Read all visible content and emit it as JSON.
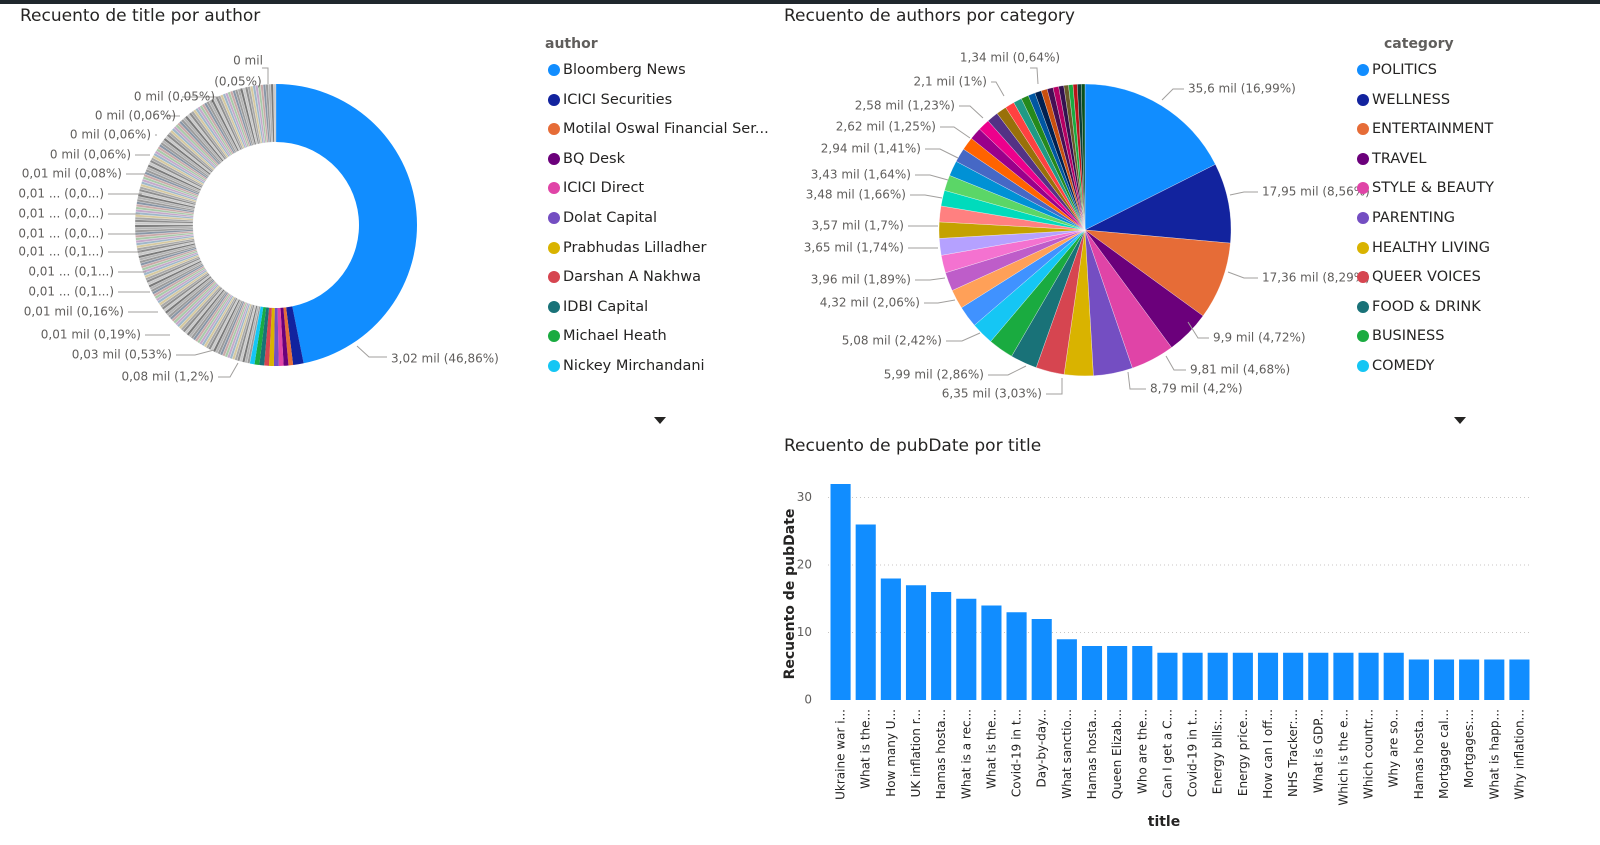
{
  "chart_data": [
    {
      "type": "pie",
      "variant": "donut",
      "title": "Recuento de title por author",
      "legend_title": "author",
      "legend_position": "right",
      "legend_items": [
        "Bloomberg News",
        "ICICI Securities",
        "Motilal Oswal Financial Ser...",
        "BQ Desk",
        "ICICI Direct",
        "Dolat Capital",
        "Prabhudas Lilladher",
        "Darshan A Nakhwa",
        "IDBI Capital",
        "Michael Heath",
        "Nickey Mirchandani"
      ],
      "legend_colors": [
        "#118DFF",
        "#12239E",
        "#E66C37",
        "#6B007B",
        "#E044A7",
        "#744EC2",
        "#D9B300",
        "#D64550",
        "#197278",
        "#1AAB40",
        "#15C6F4"
      ],
      "slices": [
        {
          "label": "Bloomberg News",
          "value_label": "3,02 mil (46,86%)",
          "percent": 46.86
        },
        {
          "label": "ICICI Securities",
          "value_label": "0,08 mil (1,2%)",
          "percent": 1.2
        },
        {
          "label": "Motilal Oswal Financial Ser...",
          "value_label": "0,03 mil (0,53%)",
          "percent": 0.53
        }
      ],
      "data_labels": [
        "3,02 mil (46,86%)",
        "0,08 mil (1,2%)",
        "0,03 mil (0,53%)",
        "0,01 mil (0,19%)",
        "0,01 mil (0,16%)",
        "0,01 ... (0,1...)",
        "0,01 ... (0,1...)",
        "0,01 ... (0,1...)",
        "0,01 ... (0,0...)",
        "0,01 ... (0,0...)",
        "0,01 ... (0,0...)",
        "0,01 mil (0,08%)",
        "0 mil (0,06%)",
        "0 mil (0,06%)",
        "0 mil (0,06%)",
        "0 mil (0,05%)",
        "(0,05%)",
        "0 mil"
      ],
      "long_tail_percent": 51.41,
      "long_tail_slice_count": 160
    },
    {
      "type": "pie",
      "title": "Recuento de authors por category",
      "legend_title": "category",
      "legend_position": "right",
      "legend_items": [
        "POLITICS",
        "WELLNESS",
        "ENTERTAINMENT",
        "TRAVEL",
        "STYLE & BEAUTY",
        "PARENTING",
        "HEALTHY LIVING",
        "QUEER VOICES",
        "FOOD & DRINK",
        "BUSINESS",
        "COMEDY"
      ],
      "slices": [
        {
          "label": "35,6 mil (16,99%)",
          "percent": 16.99,
          "color": "#118DFF"
        },
        {
          "label": "17,95 mil (8,56%)",
          "percent": 8.56,
          "color": "#12239E"
        },
        {
          "label": "17,36 mil (8,29%)",
          "percent": 8.29,
          "color": "#E66C37"
        },
        {
          "label": "9,9 mil (4,72%)",
          "percent": 4.72,
          "color": "#6B007B"
        },
        {
          "label": "9,81 mil (4,68%)",
          "percent": 4.68,
          "color": "#E044A7"
        },
        {
          "label": "8,79 mil (4,2%)",
          "percent": 4.2,
          "color": "#744EC2"
        },
        {
          "label": "",
          "percent": 3.1,
          "color": "#D9B300"
        },
        {
          "label": "6,35 mil (3,03%)",
          "percent": 3.03,
          "color": "#D64550"
        },
        {
          "label": "5,99 mil (2,86%)",
          "percent": 2.86,
          "color": "#197278"
        },
        {
          "label": "",
          "percent": 2.7,
          "color": "#1AAB40"
        },
        {
          "label": "5,08 mil (2,42%)",
          "percent": 2.42,
          "color": "#15C6F4"
        },
        {
          "label": "",
          "percent": 2.3,
          "color": "#4092FF"
        },
        {
          "label": "4,32 mil (2,06%)",
          "percent": 2.06,
          "color": "#FFA058"
        },
        {
          "label": "",
          "percent": 2.0,
          "color": "#BE5DC9"
        },
        {
          "label": "3,96 mil (1,89%)",
          "percent": 1.89,
          "color": "#F472D0"
        },
        {
          "label": "",
          "percent": 1.8,
          "color": "#B5A1FF"
        },
        {
          "label": "3,65 mil (1,74%)",
          "percent": 1.74,
          "color": "#C4A200"
        },
        {
          "label": "3,57 mil (1,7%)",
          "percent": 1.7,
          "color": "#FF8080"
        },
        {
          "label": "",
          "percent": 1.68,
          "color": "#00DBBC"
        },
        {
          "label": "3,48 mil (1,66%)",
          "percent": 1.66,
          "color": "#5BD667"
        },
        {
          "label": "3,43 mil (1,64%)",
          "percent": 1.64,
          "color": "#0091D5"
        },
        {
          "label": "",
          "percent": 1.5,
          "color": "#4668C5"
        },
        {
          "label": "2,94 mil (1,41%)",
          "percent": 1.41,
          "color": "#FF6300"
        },
        {
          "label": "",
          "percent": 1.3,
          "color": "#99008A"
        },
        {
          "label": "2,62 mil (1,25%)",
          "percent": 1.25,
          "color": "#EC008C"
        },
        {
          "label": "2,58 mil (1,23%)",
          "percent": 1.23,
          "color": "#533285"
        },
        {
          "label": "",
          "percent": 1.1,
          "color": "#99700A"
        },
        {
          "label": "2,1 mil (1%)",
          "percent": 1.0,
          "color": "#FF4141"
        },
        {
          "label": "",
          "percent": 0.9,
          "color": "#1F9A85"
        },
        {
          "label": "",
          "percent": 0.8,
          "color": "#25891C"
        },
        {
          "label": "",
          "percent": 0.75,
          "color": "#0057A2"
        },
        {
          "label": "",
          "percent": 0.7,
          "color": "#002050"
        },
        {
          "label": "",
          "percent": 0.65,
          "color": "#C94F0F"
        },
        {
          "label": "1,34 mil (0,64%)",
          "percent": 0.64,
          "color": "#450F54"
        },
        {
          "label": "",
          "percent": 0.6,
          "color": "#B60064"
        },
        {
          "label": "",
          "percent": 0.55,
          "color": "#34124F"
        },
        {
          "label": "",
          "percent": 0.5,
          "color": "#6A5A29"
        },
        {
          "label": "",
          "percent": 0.48,
          "color": "#1AAB40"
        },
        {
          "label": "",
          "percent": 0.45,
          "color": "#BA141A"
        },
        {
          "label": "",
          "percent": 0.42,
          "color": "#0C3D37"
        },
        {
          "label": "",
          "percent": 0.4,
          "color": "#0B511F"
        }
      ]
    },
    {
      "type": "bar",
      "title": "Recuento de pubDate por title",
      "xlabel": "title",
      "ylabel": "Recuento de pubDate",
      "ylim": [
        0,
        32
      ],
      "yticks": [
        0,
        10,
        20,
        30
      ],
      "grid": true,
      "color": "#118DFF",
      "categories": [
        "Ukraine war i...",
        "What is the...",
        "How many U...",
        "UK inflation r...",
        "Hamas hosta...",
        "What is a rec...",
        "What is the...",
        "Covid-19 in t...",
        "Day-by-day...",
        "What sanctio...",
        "Hamas hosta...",
        "Queen Elizab...",
        "Who are the...",
        "Can I get a C...",
        "Covid-19 in t...",
        "Energy bills:...",
        "Energy price...",
        "How can I off...",
        "NHS Tracker:...",
        "What is GDP...",
        "Which is the e...",
        "Which countr...",
        "Why are so...",
        "Hamas hosta...",
        "Mortgage cal...",
        "Mortgages:...",
        "What is happ...",
        "Why inflation..."
      ],
      "values": [
        32,
        26,
        18,
        17,
        16,
        15,
        14,
        13,
        12,
        9,
        8,
        8,
        8,
        7,
        7,
        7,
        7,
        7,
        7,
        7,
        7,
        7,
        7,
        6,
        6,
        6,
        6,
        6
      ]
    }
  ]
}
